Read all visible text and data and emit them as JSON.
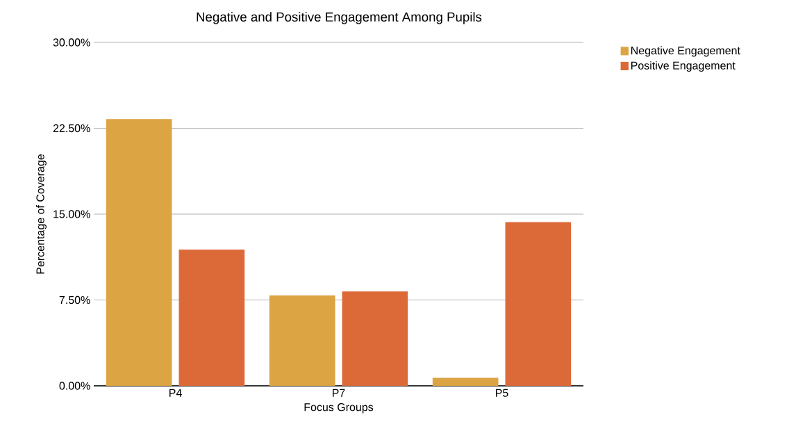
{
  "chart_data": {
    "type": "bar",
    "title": "Negative and Positive Engagement Among Pupils",
    "xlabel": "Focus Groups",
    "ylabel": "Percentage of Coverage",
    "categories": [
      "P4",
      "P7",
      "P5"
    ],
    "series": [
      {
        "name": "Negative Engagement",
        "color": "#dca443",
        "values": [
          23.3,
          7.9,
          0.7
        ]
      },
      {
        "name": "Positive Engagement",
        "color": "#dc6a39",
        "values": [
          11.9,
          8.25,
          14.3
        ]
      }
    ],
    "ylim": [
      0,
      30
    ],
    "yticks": [
      {
        "value": 0,
        "label": "0.00%"
      },
      {
        "value": 7.5,
        "label": "7.50%"
      },
      {
        "value": 15,
        "label": "15.00%"
      },
      {
        "value": 22.5,
        "label": "22.50%"
      },
      {
        "value": 30,
        "label": "30.00%"
      }
    ],
    "grid": "y",
    "legend": "top right"
  }
}
